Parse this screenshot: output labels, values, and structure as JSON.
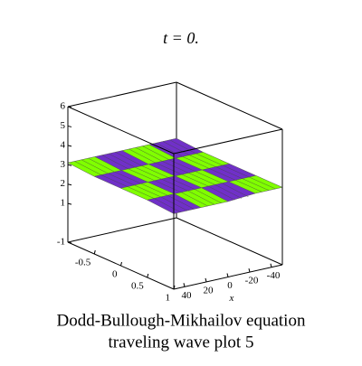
{
  "chart_data": {
    "type": "surface3d",
    "title": "t = 0.",
    "caption": [
      "Dodd-Bullough-Mikhailov equation",
      "traveling wave plot 5"
    ],
    "xlabel": "x",
    "xlim": [
      -50,
      50
    ],
    "xticks": [
      40,
      20,
      0,
      -20,
      -40
    ],
    "ylim": [
      -1,
      1
    ],
    "yticks": [
      -0.5,
      0,
      0.5,
      1
    ],
    "zlim": [
      -1,
      6
    ],
    "zticks": [
      -1,
      1,
      2,
      3,
      4,
      5,
      6
    ],
    "colors": [
      "#80ff00",
      "#7030c8"
    ],
    "surface": {
      "x": [
        50,
        25,
        0,
        -25,
        -50
      ],
      "y": [
        -1,
        -0.5,
        0,
        0.5,
        1
      ],
      "z": [
        [
          3.1,
          3.1,
          3.1,
          3.1,
          3.1
        ],
        [
          3.0,
          3.0,
          3.0,
          3.0,
          3.0
        ],
        [
          3.0,
          3.0,
          3.0,
          3.0,
          3.0
        ],
        [
          3.0,
          3.0,
          3.0,
          3.0,
          3.0
        ],
        [
          2.9,
          2.9,
          2.9,
          3.0,
          3.0
        ]
      ]
    }
  }
}
